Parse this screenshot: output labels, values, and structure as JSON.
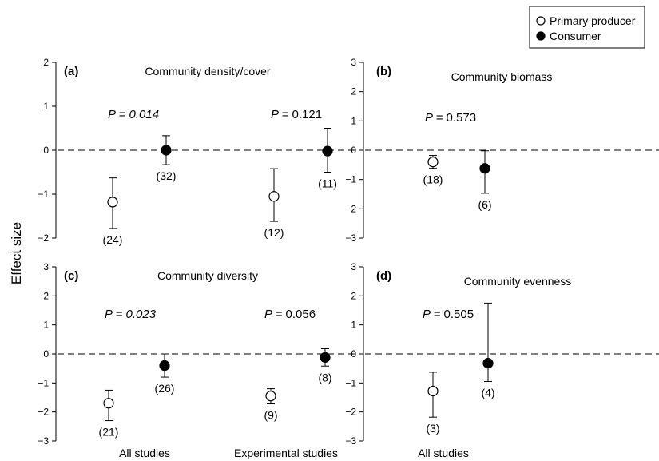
{
  "y_axis_label": "Effect size",
  "legend": {
    "items": [
      {
        "label": "Primary producer",
        "marker": "open-circle"
      },
      {
        "label": "Consumer",
        "marker": "filled-circle"
      }
    ],
    "placement": "top-right"
  },
  "colors": {
    "axis": "#000000",
    "open_fill": "#ffffff",
    "filled_fill": "#000000",
    "zero_line": "#000000"
  },
  "chart_data": [
    {
      "panel": "(a)",
      "type": "scatter",
      "title": "Community density/cover",
      "ylim": [
        -2,
        2
      ],
      "yticks": [
        -2,
        -1,
        0,
        1,
        2
      ],
      "grid": false,
      "reference_line": {
        "y": 0,
        "style": "dashed"
      },
      "groups": [
        {
          "category": "",
          "p_prefix": "P = ",
          "p_value": "0.014",
          "p_italic": true,
          "points": [
            {
              "series": "Primary producer",
              "y": -1.18,
              "lower": -1.78,
              "upper": -0.63,
              "n": "(24)",
              "n_position": "below"
            },
            {
              "series": "Consumer",
              "y": 0.0,
              "lower": -0.33,
              "upper": 0.33,
              "n": "(32)",
              "n_position": "below"
            }
          ]
        },
        {
          "category": "",
          "p_prefix": "P = ",
          "p_value": "0.121",
          "p_italic": false,
          "points": [
            {
              "series": "Primary producer",
              "y": -1.05,
              "lower": -1.62,
              "upper": -0.42,
              "n": "(12)",
              "n_position": "below"
            },
            {
              "series": "Consumer",
              "y": -0.02,
              "lower": -0.5,
              "upper": 0.5,
              "n": "(11)",
              "n_position": "below"
            }
          ]
        }
      ]
    },
    {
      "panel": "(b)",
      "type": "scatter",
      "title": "Community biomass",
      "ylim": [
        -3,
        3
      ],
      "yticks": [
        -3,
        -2,
        -1,
        0,
        1,
        2,
        3
      ],
      "grid": false,
      "reference_line": {
        "y": 0,
        "style": "dashed"
      },
      "groups": [
        {
          "category": "",
          "p_prefix": "P = ",
          "p_value": "0.573",
          "p_italic": false,
          "points": [
            {
              "series": "Primary producer",
              "y": -0.4,
              "lower": -0.62,
              "upper": -0.18,
              "n": "(18)",
              "n_position": "below"
            },
            {
              "series": "Consumer",
              "y": -0.62,
              "lower": -1.47,
              "upper": -0.02,
              "n": "(6)",
              "n_position": "below"
            }
          ]
        }
      ]
    },
    {
      "panel": "(c)",
      "type": "scatter",
      "title": "Community diversity",
      "ylim": [
        -3,
        3
      ],
      "yticks": [
        -3,
        -2,
        -1,
        0,
        1,
        2,
        3
      ],
      "grid": false,
      "reference_line": {
        "y": 0,
        "style": "dashed"
      },
      "groups": [
        {
          "category": "All studies",
          "p_prefix": "P = ",
          "p_value": "0.023",
          "p_italic": true,
          "points": [
            {
              "series": "Primary producer",
              "y": -1.7,
              "lower": -2.3,
              "upper": -1.25,
              "n": "(21)",
              "n_position": "below"
            },
            {
              "series": "Consumer",
              "y": -0.4,
              "lower": -0.8,
              "upper": 0.0,
              "n": "(26)",
              "n_position": "below"
            }
          ]
        },
        {
          "category": "Experimental studies",
          "p_prefix": "P = ",
          "p_value": "0.056",
          "p_italic": false,
          "points": [
            {
              "series": "Primary producer",
              "y": -1.45,
              "lower": -1.72,
              "upper": -1.2,
              "n": "(9)",
              "n_position": "below"
            },
            {
              "series": "Consumer",
              "y": -0.12,
              "lower": -0.42,
              "upper": 0.18,
              "n": "(8)",
              "n_position": "below"
            }
          ]
        }
      ]
    },
    {
      "panel": "(d)",
      "type": "scatter",
      "title": "Community evenness",
      "ylim": [
        -3,
        3
      ],
      "yticks": [
        -3,
        -2,
        -1,
        0,
        1,
        2,
        3
      ],
      "grid": false,
      "reference_line": {
        "y": 0,
        "style": "dashed"
      },
      "groups": [
        {
          "category": "All studies",
          "p_prefix": "P = ",
          "p_value": "0.505",
          "p_italic": false,
          "points": [
            {
              "series": "Primary producer",
              "y": -1.28,
              "lower": -2.18,
              "upper": -0.63,
              "n": "(3)",
              "n_position": "below"
            },
            {
              "series": "Consumer",
              "y": -0.32,
              "lower": -0.95,
              "upper": 1.75,
              "n": "(4)",
              "n_position": "below"
            }
          ]
        }
      ]
    }
  ]
}
